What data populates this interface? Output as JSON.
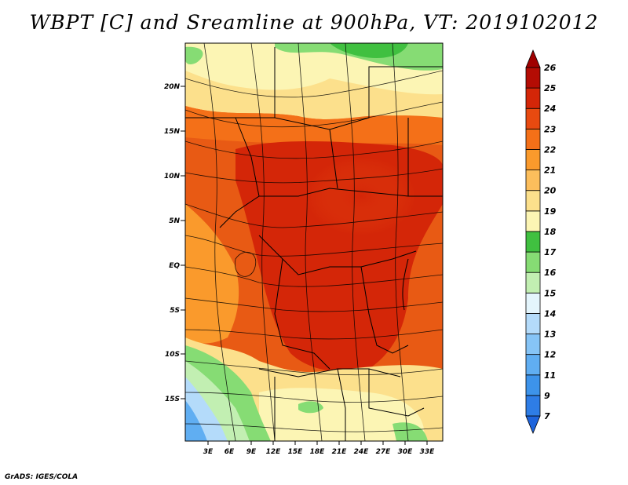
{
  "title": "WBPT [C] and Sreamline at 900hPa, VT: 2019102012",
  "credit": "GrADS: IGES/COLA",
  "lat_ticks": [
    "20N",
    "15N",
    "10N",
    "5N",
    "EQ",
    "5S",
    "10S",
    "15S"
  ],
  "lon_ticks": [
    "3E",
    "6E",
    "9E",
    "12E",
    "15E",
    "18E",
    "21E",
    "24E",
    "27E",
    "30E",
    "33E"
  ],
  "colorbar": {
    "labels": [
      "7",
      "9",
      "11",
      "12",
      "13",
      "14",
      "15",
      "16",
      "17",
      "18",
      "19",
      "20",
      "21",
      "22",
      "23",
      "24",
      "25",
      "26"
    ],
    "colors": [
      "#1e64dc",
      "#2e7de6",
      "#3d93ea",
      "#60aef2",
      "#86c4f6",
      "#b4dbfa",
      "#e4f5fc",
      "#c2efb2",
      "#86dc74",
      "#40c040",
      "#fcf5b4",
      "#fce08c",
      "#fcbe5c",
      "#fa9a2c",
      "#f47018",
      "#e84a10",
      "#d42608",
      "#b40c04",
      "#a00000"
    ]
  },
  "colors": {
    "frame": "#000000"
  }
}
